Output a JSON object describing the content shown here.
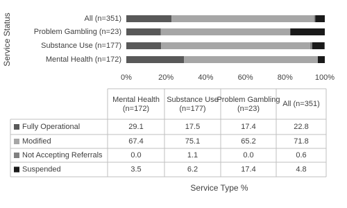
{
  "chart_data": {
    "type": "stacked-bar-horizontal",
    "y_label": "Service Status",
    "x_label": "Service Type %",
    "categories": [
      "Mental Health (n=172)",
      "Substance Use (n=177)",
      "Problem Gambling (n=23)",
      "All (n=351)"
    ],
    "series": [
      {
        "name": "Fully Operational",
        "color": "#595959",
        "values": [
          29.1,
          17.5,
          17.4,
          22.8
        ],
        "value_labels": [
          "29.1",
          "17.5",
          "17.4",
          "22.8"
        ]
      },
      {
        "name": "Modified",
        "color": "#a6a6a6",
        "values": [
          67.4,
          75.1,
          65.2,
          71.8
        ],
        "value_labels": [
          "67.4",
          "75.1",
          "65.2",
          "71.8"
        ]
      },
      {
        "name": "Not Accepting Referrals",
        "color": "#808080",
        "values": [
          0,
          1.1,
          0,
          0.6
        ],
        "value_labels": [
          "0.0",
          "1.1",
          "0.0",
          "0.6"
        ]
      },
      {
        "name": "Suspended",
        "color": "#1a1a1a",
        "values": [
          3.5,
          6.2,
          17.4,
          4.8
        ],
        "value_labels": [
          "3.5",
          "6.2",
          "17.4",
          "4.8"
        ]
      }
    ],
    "xlim": [
      0,
      100
    ],
    "xticks": [
      {
        "value": 0,
        "label": "0%"
      },
      {
        "value": 20,
        "label": "20%"
      },
      {
        "value": 40,
        "label": "40%"
      },
      {
        "value": 60,
        "label": "60%"
      },
      {
        "value": 80,
        "label": "80%"
      },
      {
        "value": 100,
        "label": "100%"
      }
    ]
  }
}
